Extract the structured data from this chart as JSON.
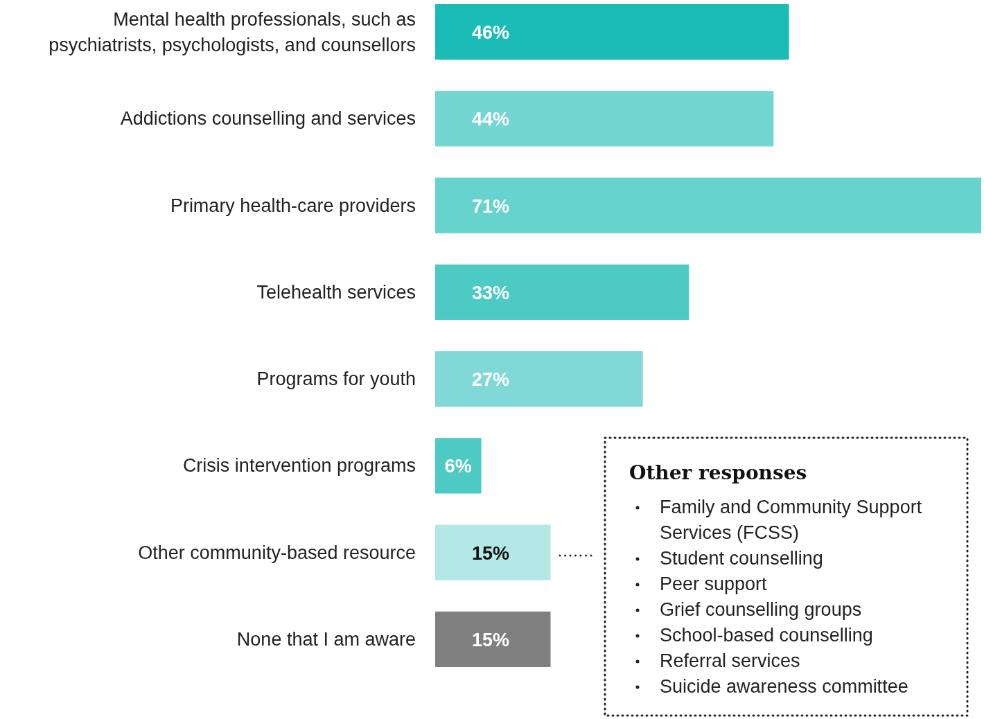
{
  "chart_data": {
    "type": "bar",
    "orientation": "horizontal",
    "value_labels": [
      "46%",
      "44%",
      "71%",
      "33%",
      "27%",
      "6%",
      "15%",
      "15%"
    ],
    "categories": [
      "Mental health professionals, such as psychiatrists, psychologists, and counsellors",
      "Addictions counselling and services",
      "Primary health-care providers",
      "Telehealth services",
      "Programs for youth",
      "Crisis intervention programs",
      "Other community-based resource",
      "None that I am aware"
    ],
    "values": [
      46,
      44,
      71,
      33,
      27,
      6,
      15,
      15
    ],
    "colors": [
      "#1bbcb6",
      "#73d6d1",
      "#66d3cd",
      "#4ecac4",
      "#80d9d6",
      "#4ecac4",
      "#b3e8e5",
      "#808080"
    ],
    "annotations": [
      "Other responses",
      "Family and Community Support Services (FCSS)",
      "Student counselling",
      "Peer support",
      "Grief counselling groups",
      "School-based counselling",
      "Referral services",
      "Suicide awareness committee"
    ]
  }
}
